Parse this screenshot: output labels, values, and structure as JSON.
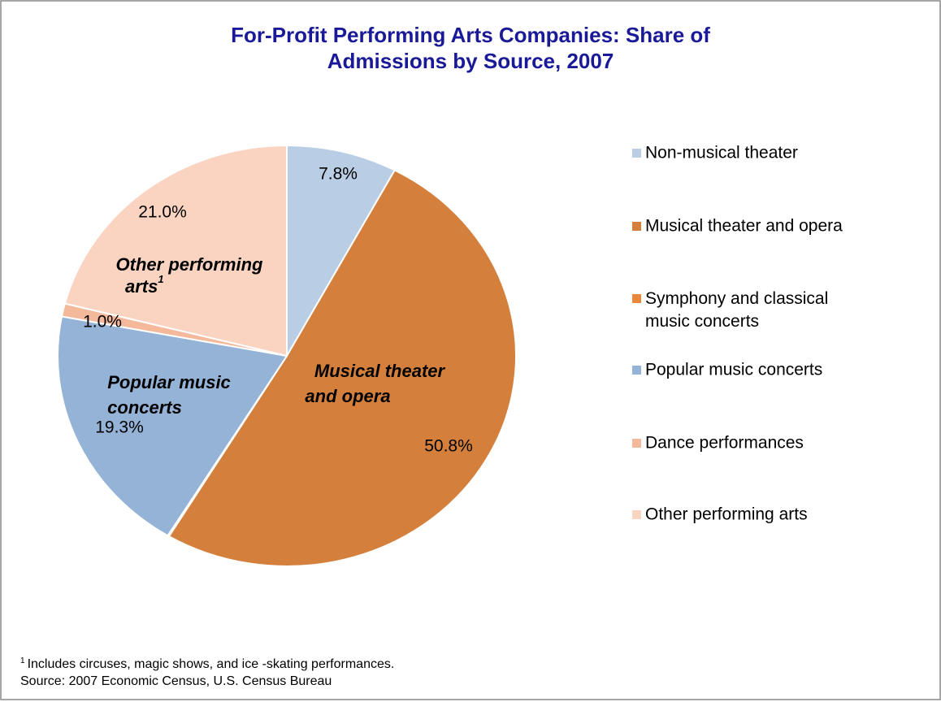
{
  "chart_data": {
    "type": "pie",
    "title": [
      "For-Profit Performing Arts Companies: Share of",
      "Admissions by Source, 2007"
    ],
    "categories": [
      "Non-musical theater",
      "Musical theater and opera",
      "Symphony and classical music concerts",
      "Popular music concerts",
      "Dance performances",
      "Other performing arts"
    ],
    "values": [
      7.8,
      50.8,
      0.1,
      19.3,
      1.0,
      21.0
    ],
    "value_labels": [
      "7.8%",
      "50.8%",
      null,
      "19.3%",
      "1.0%",
      "21.0%"
    ],
    "colors": [
      "#b9cde5",
      "#d4803c",
      "#e8883c",
      "#95b3d7",
      "#f4b89a",
      "#fad4c0"
    ],
    "legend": "right",
    "annotations": [
      {
        "lines": [
          "Musical theater",
          "and opera"
        ]
      },
      {
        "lines": [
          "Popular music",
          "concerts"
        ]
      },
      {
        "lines": [
          "Other performing",
          "arts"
        ],
        "sup": "1"
      }
    ],
    "footnote": {
      "marker": "1",
      "text": "Includes circuses, magic shows, and ice -skating performances."
    },
    "source": "Source: 2007 Economic Census, U.S. Census Bureau"
  }
}
